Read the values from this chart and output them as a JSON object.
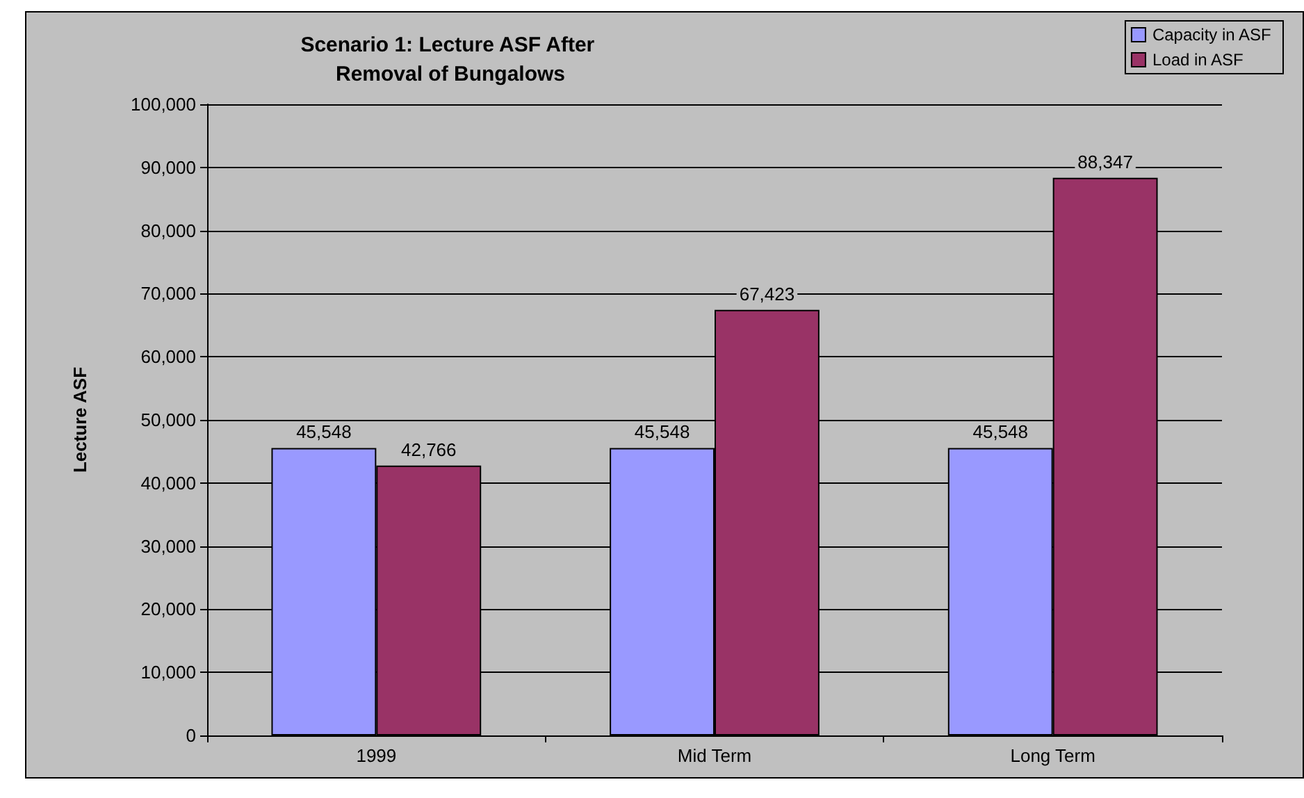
{
  "chart_data": {
    "type": "bar",
    "title": "Scenario 1: Lecture ASF After Removal of Bungalows",
    "ylabel": "Lecture ASF",
    "categories": [
      "1999",
      "Mid Term",
      "Long Term"
    ],
    "series": [
      {
        "name": "Capacity in ASF",
        "color": "#9999ff",
        "values": [
          45548,
          45548,
          45548
        ],
        "value_labels": [
          "45,548",
          "45,548",
          "45,548"
        ]
      },
      {
        "name": "Load in ASF",
        "color": "#993366",
        "values": [
          42766,
          67423,
          88347
        ],
        "value_labels": [
          "42,766",
          "67,423",
          "88,347"
        ]
      }
    ],
    "ylim": [
      0,
      100000
    ],
    "yticks": [
      0,
      {
        "value": 10000,
        "label": "10,000"
      },
      {
        "value": 20000,
        "label": "20,000"
      },
      {
        "value": 30000,
        "label": "30,000"
      },
      {
        "value": 40000,
        "label": "40,000"
      },
      {
        "value": 50000,
        "label": "50,000"
      },
      {
        "value": 60000,
        "label": "60,000"
      },
      {
        "value": 70000,
        "label": "70,000"
      },
      {
        "value": 80000,
        "label": "80,000"
      },
      {
        "value": 90000,
        "label": "90,000"
      },
      {
        "value": 100000,
        "label": "100,000"
      }
    ],
    "grid": "y",
    "legend": "top right"
  }
}
